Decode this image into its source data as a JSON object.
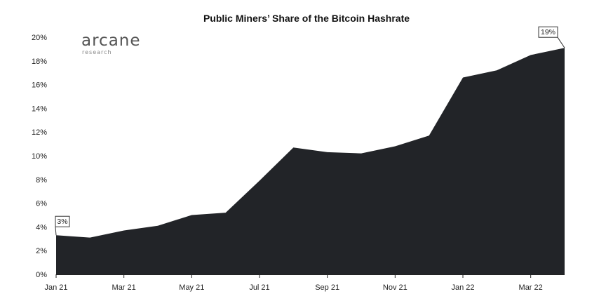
{
  "chart_data": {
    "type": "area",
    "title": "Public Miners’ Share of the Bitcoin Hashrate",
    "xlabel": "",
    "ylabel": "",
    "x": [
      "2021-01",
      "2021-02",
      "2021-03",
      "2021-04",
      "2021-05",
      "2021-06",
      "2021-07",
      "2021-08",
      "2021-09",
      "2021-10",
      "2021-11",
      "2021-12",
      "2022-01",
      "2022-02",
      "2022-03",
      "2022-04"
    ],
    "values": [
      3.3,
      3.1,
      3.7,
      4.1,
      5.0,
      5.2,
      7.9,
      10.7,
      10.3,
      10.2,
      10.8,
      11.7,
      16.6,
      17.2,
      18.5,
      19.1
    ],
    "ylim": [
      0,
      20
    ],
    "y_ticks": [
      "0%",
      "2%",
      "4%",
      "6%",
      "8%",
      "10%",
      "12%",
      "14%",
      "16%",
      "18%",
      "20%"
    ],
    "x_ticks": [
      {
        "label": "Jan 21",
        "index": 0
      },
      {
        "label": "Mar 21",
        "index": 2
      },
      {
        "label": "May 21",
        "index": 4
      },
      {
        "label": "Jul 21",
        "index": 6
      },
      {
        "label": "Sep 21",
        "index": 8
      },
      {
        "label": "Nov 21",
        "index": 10
      },
      {
        "label": "Jan 22",
        "index": 12
      },
      {
        "label": "Mar 22",
        "index": 14
      }
    ],
    "annotations": [
      {
        "text": "3%",
        "index": 0
      },
      {
        "text": "19%",
        "index": 15
      }
    ],
    "fill_color": "#222428",
    "grid": false,
    "legend": "none"
  },
  "logo": {
    "main": "arcane",
    "sub": "research"
  }
}
